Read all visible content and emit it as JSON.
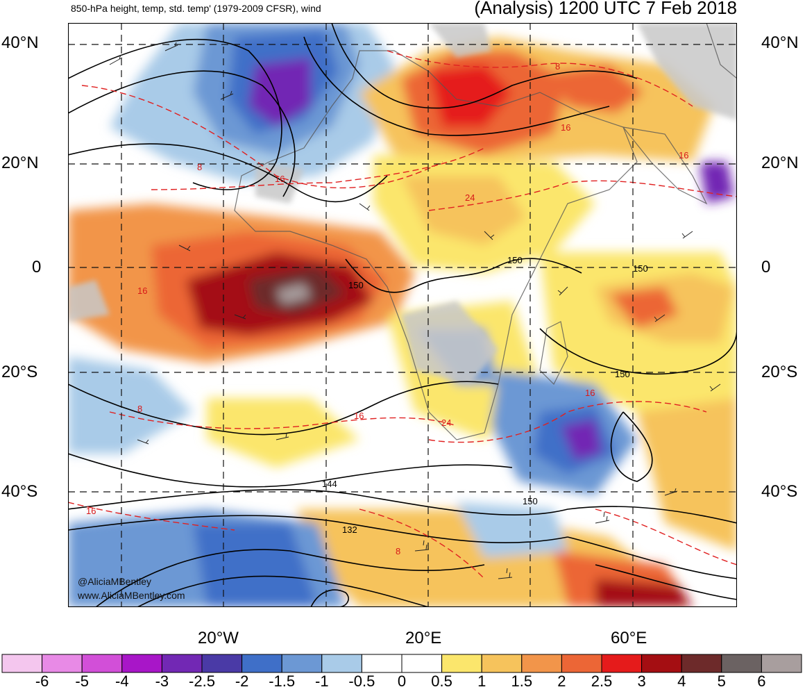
{
  "header": {
    "left_title": "850-hPa height, temp, std. temp' (1979-2009 CFSR), wind",
    "right_title": "(Analysis) 1200 UTC 7 Feb 2018"
  },
  "axes": {
    "lat_labels": [
      "40°N",
      "20°N",
      "0",
      "20°S",
      "40°S"
    ],
    "lon_labels": [
      "20°W",
      "20°E",
      "60°E"
    ]
  },
  "contour_labels": {
    "height": [
      "150",
      "150",
      "150",
      "150",
      "150",
      "144",
      "132"
    ],
    "temperature": [
      "8",
      "16",
      "24",
      "16",
      "8",
      "16",
      "16",
      "16",
      "24",
      "16",
      "8",
      "16",
      "8"
    ]
  },
  "credit": {
    "handle": "@AliciaMBentley",
    "site": "www.AliciaMBentley.com"
  },
  "colorbar": {
    "ticks": [
      "-6",
      "-5",
      "-4",
      "-3",
      "-2.5",
      "-2",
      "-1.5",
      "-1",
      "-0.5",
      "0",
      "0.5",
      "1",
      "1.5",
      "2",
      "2.5",
      "3",
      "4",
      "5",
      "6"
    ],
    "colors": [
      "#f4c6ee",
      "#e88ae6",
      "#d24fd8",
      "#a816c8",
      "#7228b4",
      "#4a3aa6",
      "#3f6fc8",
      "#6c98d4",
      "#a9cbe8",
      "#ffffff",
      "#ffffff",
      "#fbe66c",
      "#f6c35c",
      "#f2954a",
      "#ec6636",
      "#e51b1b",
      "#a40e12",
      "#6d2a2a",
      "#6b6262",
      "#a89e9e"
    ]
  }
}
